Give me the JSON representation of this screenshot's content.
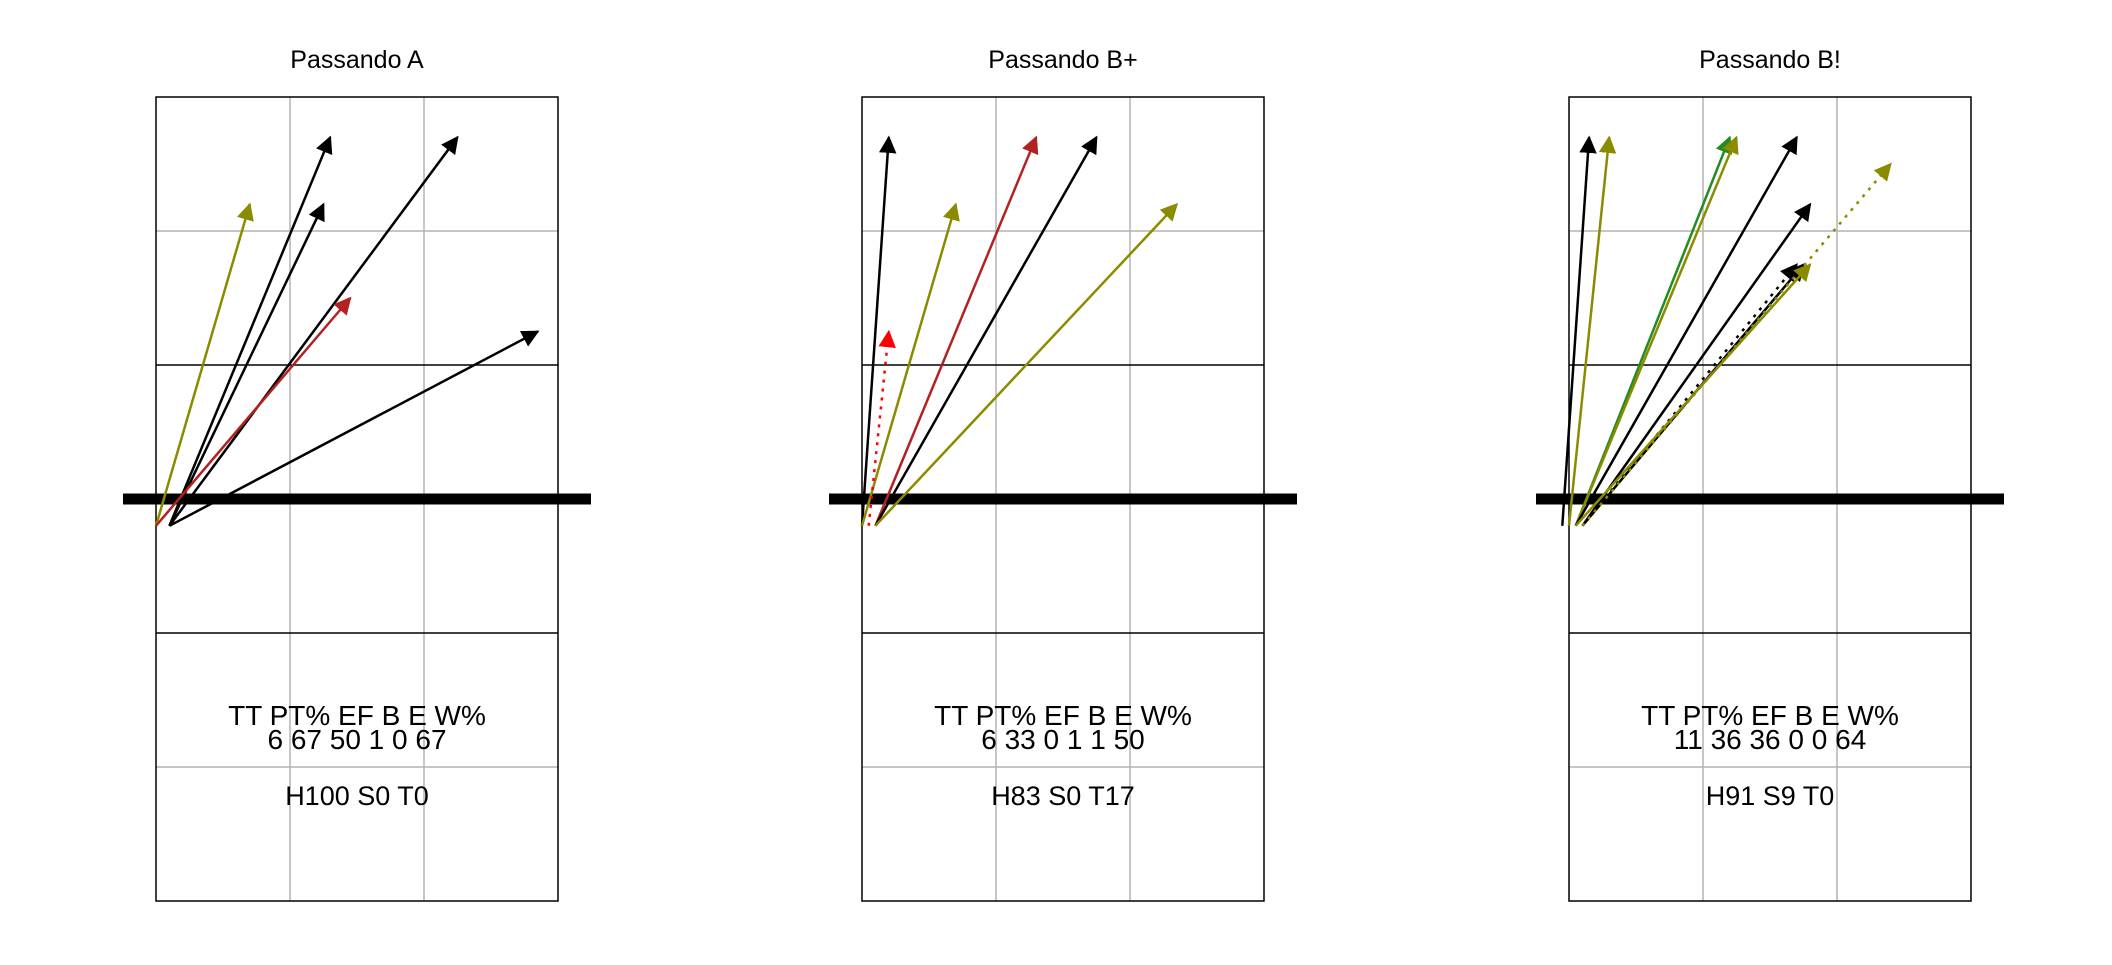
{
  "chart_data": [
    {
      "type": "arrow-court",
      "title": "Passando A",
      "court": {
        "xlim": [
          0,
          3
        ],
        "ylim": [
          0,
          6
        ],
        "net_y": 3,
        "grid": true
      },
      "arrows": [
        {
          "from": [
            0.0,
            -0.2
          ],
          "to": [
            0.7,
            2.2
          ],
          "color": "#8b8b00",
          "dotted": false
        },
        {
          "from": [
            0.1,
            -0.2
          ],
          "to": [
            1.3,
            2.7
          ],
          "color": "#000000",
          "dotted": false
        },
        {
          "from": [
            0.1,
            -0.2
          ],
          "to": [
            1.25,
            2.2
          ],
          "color": "#000000",
          "dotted": false
        },
        {
          "from": [
            0.1,
            -0.2
          ],
          "to": [
            2.25,
            2.7
          ],
          "color": "#000000",
          "dotted": false
        },
        {
          "from": [
            0.0,
            -0.2
          ],
          "to": [
            1.45,
            1.5
          ],
          "color": "#b22222",
          "dotted": false
        },
        {
          "from": [
            0.1,
            -0.2
          ],
          "to": [
            2.85,
            1.25
          ],
          "color": "#000000",
          "dotted": false
        }
      ],
      "stats": {
        "headers": [
          "TT",
          "PT%",
          "EF",
          "B",
          "E",
          "W%"
        ],
        "values": [
          "6",
          "67",
          "50",
          "1",
          "0",
          "67"
        ],
        "summary": "H100 S0 T0"
      }
    },
    {
      "type": "arrow-court",
      "title": "Passando B+",
      "court": {
        "xlim": [
          0,
          3
        ],
        "ylim": [
          0,
          6
        ],
        "net_y": 3,
        "grid": true
      },
      "arrows": [
        {
          "from": [
            0.0,
            -0.2
          ],
          "to": [
            0.2,
            2.7
          ],
          "color": "#000000",
          "dotted": false
        },
        {
          "from": [
            0.0,
            -0.2
          ],
          "to": [
            0.7,
            2.2
          ],
          "color": "#8b8b00",
          "dotted": false
        },
        {
          "from": [
            0.05,
            -0.2
          ],
          "to": [
            0.2,
            1.25
          ],
          "color": "#ff0000",
          "dotted": true
        },
        {
          "from": [
            0.1,
            -0.2
          ],
          "to": [
            1.3,
            2.7
          ],
          "color": "#b22222",
          "dotted": false
        },
        {
          "from": [
            0.1,
            -0.2
          ],
          "to": [
            1.75,
            2.7
          ],
          "color": "#000000",
          "dotted": false
        },
        {
          "from": [
            0.1,
            -0.2
          ],
          "to": [
            2.35,
            2.2
          ],
          "color": "#8b8b00",
          "dotted": false
        }
      ],
      "stats": {
        "headers": [
          "TT",
          "PT%",
          "EF",
          "B",
          "E",
          "W%"
        ],
        "values": [
          "6",
          "33",
          "0",
          "1",
          "1",
          "50"
        ],
        "summary": "H83 S0 T17"
      }
    },
    {
      "type": "arrow-court",
      "title": "Passando B!",
      "court": {
        "xlim": [
          0,
          3
        ],
        "ylim": [
          0,
          6
        ],
        "net_y": 3,
        "grid": true
      },
      "arrows": [
        {
          "from": [
            -0.05,
            -0.2
          ],
          "to": [
            0.15,
            2.7
          ],
          "color": "#000000",
          "dotted": false
        },
        {
          "from": [
            0.0,
            -0.2
          ],
          "to": [
            0.3,
            2.7
          ],
          "color": "#8b8b00",
          "dotted": false
        },
        {
          "from": [
            0.05,
            -0.2
          ],
          "to": [
            1.2,
            2.7
          ],
          "color": "#228b22",
          "dotted": false
        },
        {
          "from": [
            0.05,
            -0.2
          ],
          "to": [
            1.25,
            2.7
          ],
          "color": "#8b8b00",
          "dotted": false
        },
        {
          "from": [
            0.05,
            -0.2
          ],
          "to": [
            1.7,
            2.7
          ],
          "color": "#000000",
          "dotted": false
        },
        {
          "from": [
            0.1,
            -0.2
          ],
          "to": [
            1.8,
            2.2
          ],
          "color": "#000000",
          "dotted": false
        },
        {
          "from": [
            0.1,
            -0.2
          ],
          "to": [
            1.75,
            1.75
          ],
          "color": "#000000",
          "dotted": false
        },
        {
          "from": [
            0.1,
            -0.2
          ],
          "to": [
            1.7,
            1.75
          ],
          "color": "#000000",
          "dotted": true
        },
        {
          "from": [
            0.05,
            -0.2
          ],
          "to": [
            1.8,
            1.75
          ],
          "color": "#8b8b00",
          "dotted": false
        },
        {
          "from": [
            0.1,
            -0.2
          ],
          "to": [
            2.4,
            2.5
          ],
          "color": "#8b8b00",
          "dotted": true
        }
      ],
      "stats": {
        "headers": [
          "TT",
          "PT%",
          "EF",
          "B",
          "E",
          "W%"
        ],
        "values": [
          "11",
          "36",
          "36",
          "0",
          "0",
          "64"
        ],
        "summary": "H91 S9 T0"
      }
    }
  ]
}
